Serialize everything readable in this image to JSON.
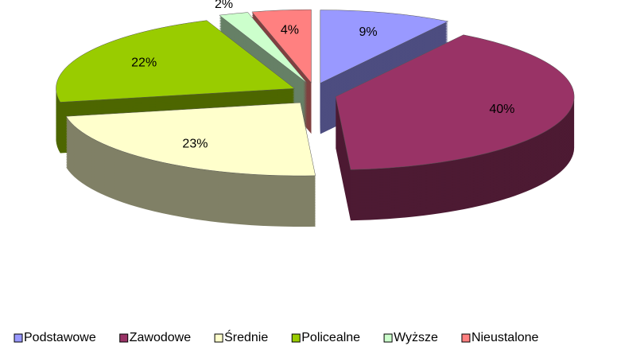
{
  "chart_data": {
    "type": "pie",
    "categories": [
      "Podstawowe",
      "Zawodowe",
      "Średnie",
      "Policealne",
      "Wyższe",
      "Nieustalone"
    ],
    "values": [
      9,
      40,
      23,
      22,
      2,
      4
    ],
    "value_labels": [
      "9%",
      "40%",
      "23%",
      "22%",
      "2%",
      "4%"
    ],
    "colors": [
      "#9999ff",
      "#993366",
      "#ffffcc",
      "#99cc00",
      "#ccffcc",
      "#ff8080"
    ],
    "legend": "bottom"
  }
}
